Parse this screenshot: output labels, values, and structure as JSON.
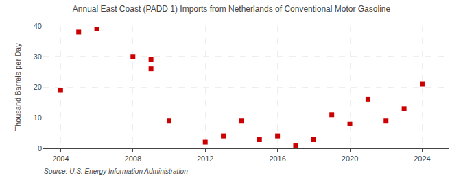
{
  "chart_data": {
    "type": "scatter",
    "title": "Annual East Coast (PADD 1) Imports from Netherlands of Conventional Motor Gasoline",
    "ylabel": "Thousand Barrels per Day",
    "annotations": [
      "Source: U.S. Energy Information Administration"
    ],
    "x": [
      2004,
      2005,
      2006,
      2008,
      2009,
      2009,
      2010,
      2012,
      2013,
      2014,
      2015,
      2016,
      2017,
      2018,
      2019,
      2020,
      2021,
      2022,
      2023,
      2024
    ],
    "values": [
      19,
      38,
      39,
      30,
      26,
      29,
      9,
      2,
      4,
      9,
      3,
      4,
      1,
      3,
      11,
      8,
      16,
      9,
      13,
      21
    ],
    "color": "#cc0000",
    "marker": "square",
    "xlim": [
      2003.0,
      2025.5
    ],
    "ylim": [
      0,
      40
    ],
    "xticks": [
      2004,
      2008,
      2012,
      2016,
      2020,
      2024
    ],
    "yticks": [
      0,
      10,
      20,
      30,
      40
    ],
    "grid": true
  }
}
